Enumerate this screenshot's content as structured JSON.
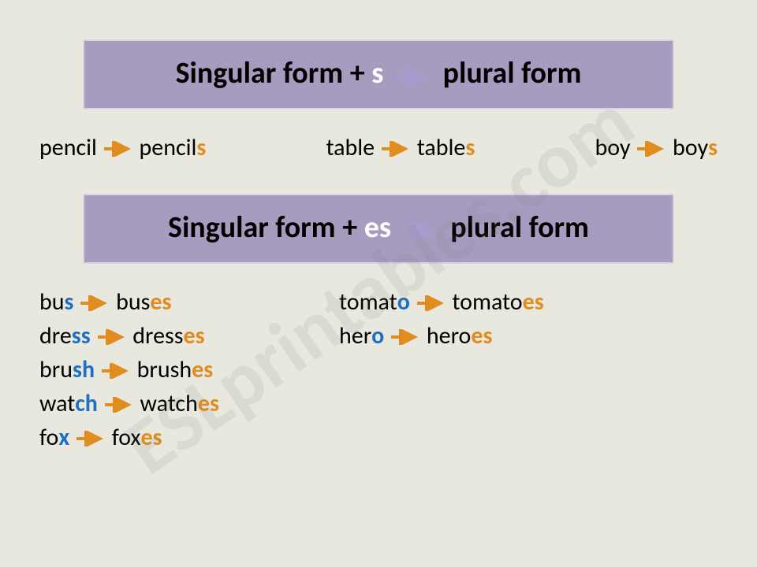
{
  "colors": {
    "background": "#e9e8df",
    "ruleBox": "#a79bbf",
    "ruleBorder": "#d9d4e3",
    "orange": "#e08c1e",
    "blue": "#1f6fc5",
    "arrowPurple": "#a79bd0",
    "black": "#000000",
    "white": "#ffffff"
  },
  "watermark": "ESLprintables.com",
  "rule1": {
    "pre": "Singular form + ",
    "suffix": "s",
    "post": " plural form"
  },
  "rule2": {
    "pre": "Singular form + ",
    "suffix": "es",
    "post": " plural form"
  },
  "examples_s": [
    {
      "singular": "pencil",
      "plural_stem": "pencil",
      "plural_suffix": "s"
    },
    {
      "singular": "table",
      "plural_stem": "table",
      "plural_suffix": "s"
    },
    {
      "singular": "boy",
      "plural_stem": "boy",
      "plural_suffix": "s"
    }
  ],
  "examples_es_col1": [
    {
      "sing_pre": "bu",
      "sing_hi": "s",
      "plural_stem": "bus",
      "plural_suffix": "es"
    },
    {
      "sing_pre": "dre",
      "sing_hi": "ss",
      "plural_stem": "dress",
      "plural_suffix": "es"
    },
    {
      "sing_pre": "bru",
      "sing_hi": "sh",
      "plural_stem": "brush",
      "plural_suffix": "es"
    },
    {
      "sing_pre": "wat",
      "sing_hi": "ch",
      "plural_stem": "watch",
      "plural_suffix": "es"
    },
    {
      "sing_pre": "fo",
      "sing_hi": "x",
      "plural_stem": "fox",
      "plural_suffix": "es"
    }
  ],
  "examples_es_col2": [
    {
      "sing_pre": "tomat",
      "sing_hi": "o",
      "plural_stem": "tomato",
      "plural_suffix": "es"
    },
    {
      "sing_pre": "her",
      "sing_hi": "o",
      "plural_stem": "hero",
      "plural_suffix": "es"
    }
  ]
}
